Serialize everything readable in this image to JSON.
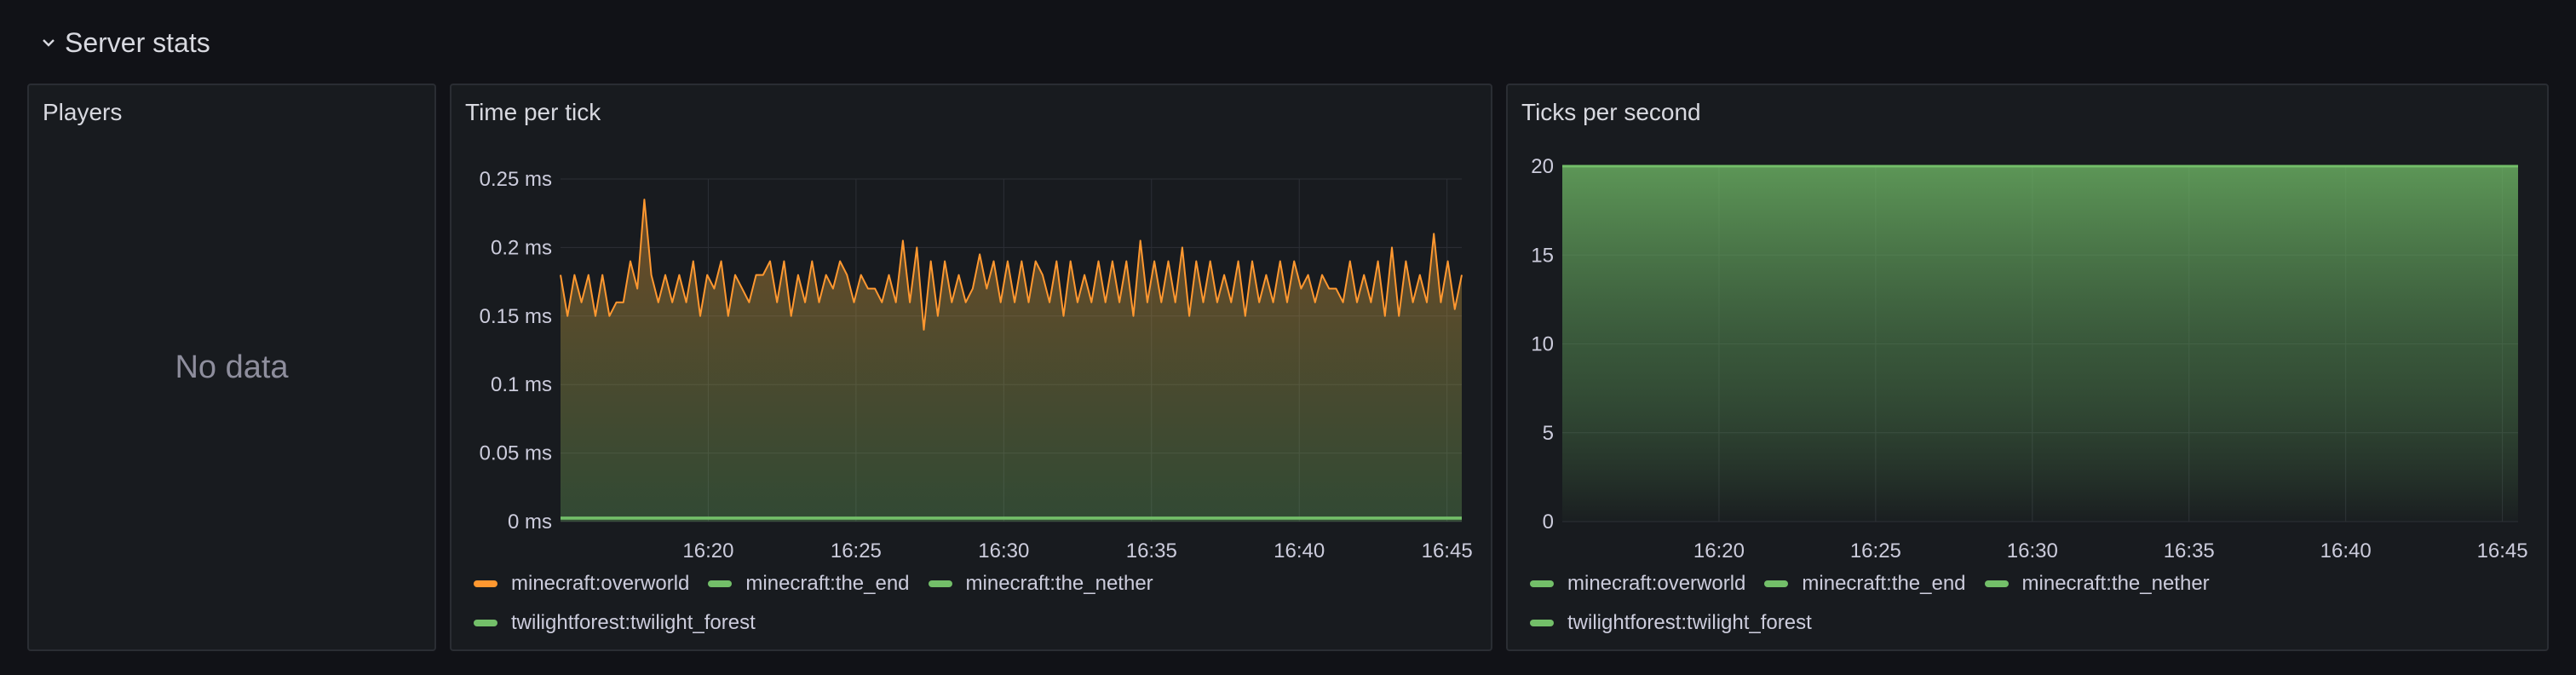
{
  "row": {
    "title": "Server stats"
  },
  "panels": {
    "players": {
      "title": "Players",
      "message": "No data"
    },
    "tpt": {
      "title": "Time per tick"
    },
    "tps": {
      "title": "Ticks per second"
    }
  },
  "legend": [
    {
      "label": "minecraft:overworld",
      "color": "#ff9830"
    },
    {
      "label": "minecraft:the_end",
      "color": "#73bf69"
    },
    {
      "label": "minecraft:the_nether",
      "color": "#73bf69"
    },
    {
      "label": "twilightforest:twilight_forest",
      "color": "#73bf69"
    }
  ],
  "legend_tps": [
    {
      "label": "minecraft:overworld",
      "color": "#73bf69"
    },
    {
      "label": "minecraft:the_end",
      "color": "#73bf69"
    },
    {
      "label": "minecraft:the_nether",
      "color": "#73bf69"
    },
    {
      "label": "twilightforest:twilight_forest",
      "color": "#73bf69"
    }
  ],
  "chart_data": [
    {
      "type": "line",
      "title": "Time per tick",
      "x_start": "16:15",
      "x_end": "16:45:30",
      "x_ticks": [
        "16:20",
        "16:25",
        "16:30",
        "16:35",
        "16:40",
        "16:45"
      ],
      "y_ticks": [
        "0 ms",
        "0.05 ms",
        "0.1 ms",
        "0.15 ms",
        "0.2 ms",
        "0.25 ms"
      ],
      "ylim": [
        0,
        0.25
      ],
      "series": [
        {
          "name": "minecraft:overworld",
          "color": "#ff9830",
          "values": [
            0.18,
            0.15,
            0.18,
            0.16,
            0.18,
            0.15,
            0.18,
            0.15,
            0.16,
            0.16,
            0.19,
            0.17,
            0.235,
            0.18,
            0.16,
            0.18,
            0.16,
            0.18,
            0.16,
            0.19,
            0.15,
            0.18,
            0.17,
            0.19,
            0.15,
            0.18,
            0.17,
            0.16,
            0.18,
            0.18,
            0.19,
            0.16,
            0.19,
            0.15,
            0.18,
            0.16,
            0.19,
            0.16,
            0.18,
            0.17,
            0.19,
            0.18,
            0.16,
            0.18,
            0.17,
            0.17,
            0.16,
            0.18,
            0.16,
            0.205,
            0.16,
            0.2,
            0.14,
            0.19,
            0.15,
            0.19,
            0.16,
            0.18,
            0.16,
            0.17,
            0.195,
            0.17,
            0.19,
            0.16,
            0.19,
            0.16,
            0.19,
            0.16,
            0.19,
            0.18,
            0.16,
            0.19,
            0.15,
            0.19,
            0.16,
            0.18,
            0.16,
            0.19,
            0.16,
            0.19,
            0.16,
            0.19,
            0.15,
            0.205,
            0.16,
            0.19,
            0.16,
            0.19,
            0.16,
            0.2,
            0.15,
            0.19,
            0.16,
            0.19,
            0.16,
            0.18,
            0.16,
            0.19,
            0.15,
            0.19,
            0.16,
            0.18,
            0.16,
            0.19,
            0.16,
            0.19,
            0.17,
            0.18,
            0.16,
            0.18,
            0.17,
            0.17,
            0.16,
            0.19,
            0.16,
            0.18,
            0.16,
            0.19,
            0.15,
            0.2,
            0.15,
            0.19,
            0.16,
            0.18,
            0.16,
            0.21,
            0.16,
            0.19,
            0.155,
            0.18
          ]
        },
        {
          "name": "minecraft:the_end",
          "color": "#73bf69",
          "values": [
            0.003,
            0.003
          ]
        },
        {
          "name": "minecraft:the_nether",
          "color": "#73bf69",
          "values": [
            0.002,
            0.002
          ]
        },
        {
          "name": "twilightforest:twilight_forest",
          "color": "#73bf69",
          "values": [
            0.003,
            0.003
          ]
        }
      ]
    },
    {
      "type": "area",
      "title": "Ticks per second",
      "x_start": "16:15",
      "x_end": "16:45:30",
      "x_ticks": [
        "16:20",
        "16:25",
        "16:30",
        "16:35",
        "16:40",
        "16:45"
      ],
      "y_ticks": [
        "0",
        "5",
        "10",
        "15",
        "20"
      ],
      "ylim": [
        0,
        20
      ],
      "series": [
        {
          "name": "minecraft:overworld",
          "color": "#73bf69",
          "values": [
            20,
            20
          ]
        },
        {
          "name": "minecraft:the_end",
          "color": "#73bf69",
          "values": [
            20,
            20
          ]
        },
        {
          "name": "minecraft:the_nether",
          "color": "#73bf69",
          "values": [
            20,
            20
          ]
        },
        {
          "name": "twilightforest:twilight_forest",
          "color": "#73bf69",
          "values": [
            20,
            20
          ]
        }
      ]
    }
  ]
}
